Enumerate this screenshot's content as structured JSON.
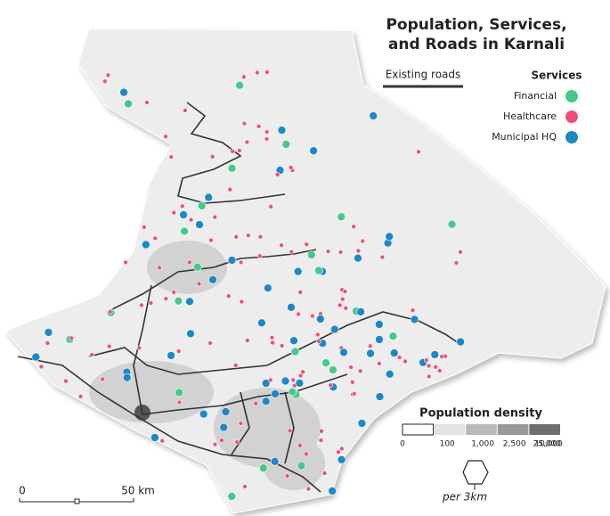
{
  "title_lines": [
    "Population, Services,",
    "and Roads in Karnali"
  ],
  "roads_legend": {
    "label": "Existing roads",
    "color": "#333333"
  },
  "services": {
    "title": "Services",
    "items": [
      {
        "label": "Financial",
        "color": "#45c98a"
      },
      {
        "label": "Healthcare",
        "color": "#ee4f7a"
      },
      {
        "label": "Municipal HQ",
        "color": "#1e88c7"
      }
    ]
  },
  "population_density": {
    "title": "Population density",
    "breaks": [
      "0",
      "100",
      "1,000",
      "2,500",
      "10,000",
      "25,000"
    ],
    "colors": [
      "#ffffff",
      "#e2e2e2",
      "#b9b9b9",
      "#999999",
      "#6e6e6e"
    ]
  },
  "hex_note": "per 3km",
  "scale_bar": {
    "labels": [
      "0",
      "50 km"
    ]
  }
}
